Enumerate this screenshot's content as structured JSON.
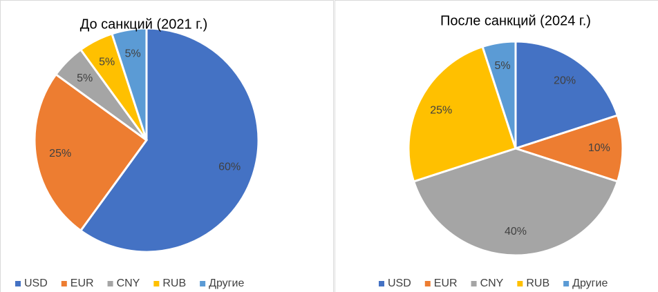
{
  "chart_data": [
    {
      "type": "pie",
      "title": "До санкций (2021 г.)",
      "categories": [
        "USD",
        "EUR",
        "CNY",
        "RUB",
        "Другие"
      ],
      "values": [
        60,
        25,
        5,
        5,
        5
      ],
      "value_labels": [
        "60%",
        "25%",
        "5%",
        "5%",
        "5%"
      ],
      "colors": [
        "#4472c4",
        "#ed7d31",
        "#a5a5a5",
        "#ffc000",
        "#5b9bd5"
      ],
      "legend": "bottom"
    },
    {
      "type": "pie",
      "title": "После санкций (2024 г.)",
      "categories": [
        "USD",
        "EUR",
        "CNY",
        "RUB",
        "Другие"
      ],
      "values": [
        20,
        10,
        40,
        25,
        5
      ],
      "value_labels": [
        "20%",
        "10%",
        "40%",
        "25%",
        "5%"
      ],
      "colors": [
        "#4472c4",
        "#ed7d31",
        "#a5a5a5",
        "#ffc000",
        "#5b9bd5"
      ],
      "legend": "bottom"
    }
  ]
}
